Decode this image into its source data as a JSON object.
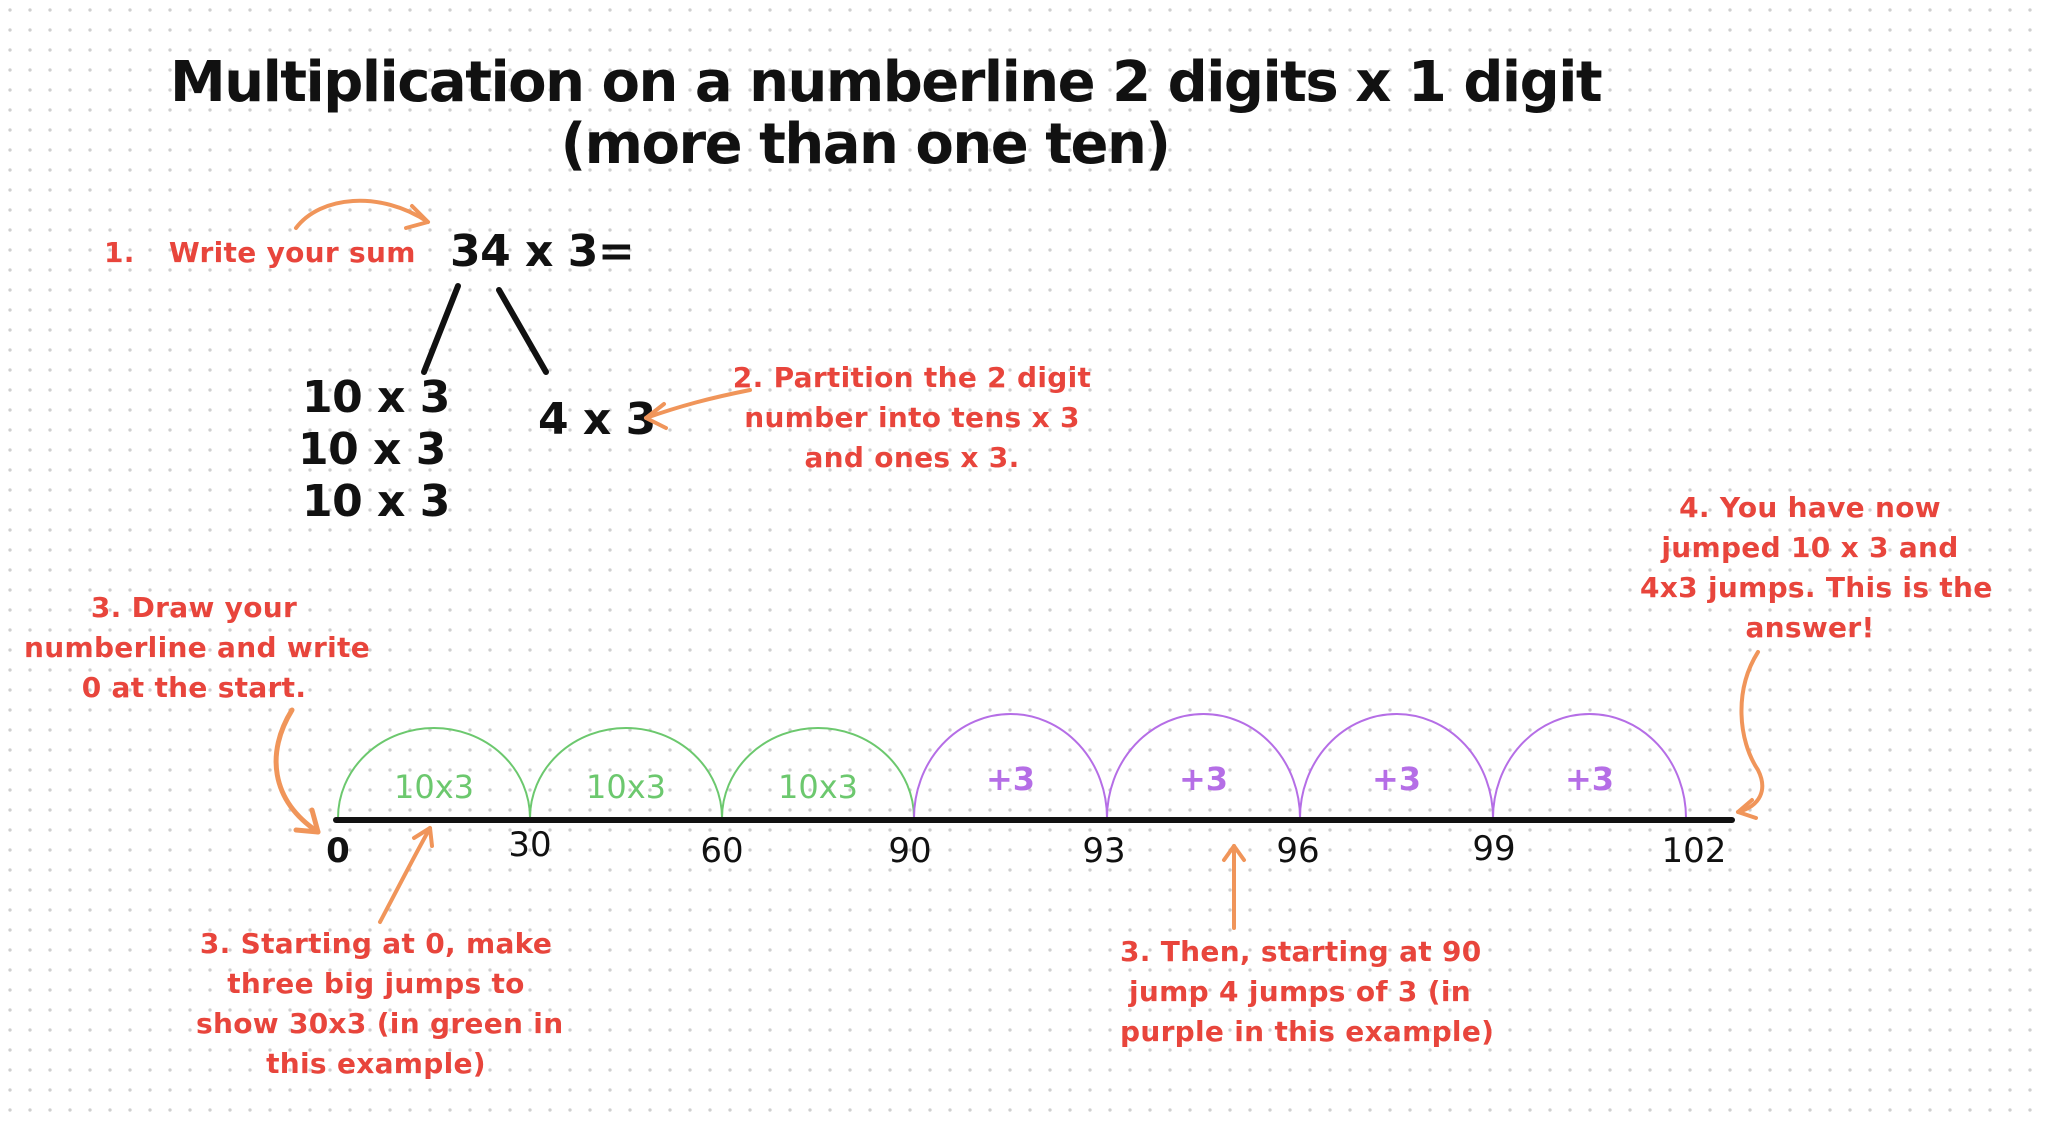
{
  "title": {
    "line1": "Multiplication on a numberline 2 digits x 1 digit",
    "line2": "(more than one ten)"
  },
  "equation": "34 x 3=",
  "partition": {
    "tens": [
      "10 x 3",
      "10 x 3",
      "10 x 3"
    ],
    "ones": "4 x 3"
  },
  "steps": {
    "step1": {
      "number": "1.",
      "text": "Write your sum"
    },
    "step2": [
      "2. Partition the 2 digit",
      "number into tens x 3",
      "and ones x 3."
    ],
    "step3_draw": [
      "3. Draw your",
      "numberline and write",
      "0 at the start."
    ],
    "step3_green": [
      "3. Starting at 0, make",
      "three big jumps to",
      "show 30x3 (in green in",
      "this example)"
    ],
    "step3_purple": [
      "3. Then, starting at 90",
      "jump 4 jumps of 3 (in",
      "purple in this example)"
    ],
    "step4": [
      "4. You have now",
      "jumped 10 x 3 and",
      "4x3 jumps. This is the",
      "answer!"
    ]
  },
  "numberline": {
    "ticks": [
      "0",
      "30",
      "60",
      "90",
      "93",
      "96",
      "99",
      "102"
    ],
    "jumps": [
      {
        "label": "10x3",
        "from": 0,
        "to": 30,
        "color": "green"
      },
      {
        "label": "10x3",
        "from": 30,
        "to": 60,
        "color": "green"
      },
      {
        "label": "10x3",
        "from": 60,
        "to": 90,
        "color": "green"
      },
      {
        "label": "+3",
        "from": 90,
        "to": 93,
        "color": "purple"
      },
      {
        "label": "+3",
        "from": 93,
        "to": 96,
        "color": "purple"
      },
      {
        "label": "+3",
        "from": 96,
        "to": 99,
        "color": "purple"
      },
      {
        "label": "+3",
        "from": 99,
        "to": 102,
        "color": "purple"
      }
    ]
  },
  "colors": {
    "note_red": "#e8453c",
    "arrow_orange": "#f0955a",
    "green": "#6cc86e",
    "purple": "#b56ee6",
    "ink": "#111111"
  }
}
